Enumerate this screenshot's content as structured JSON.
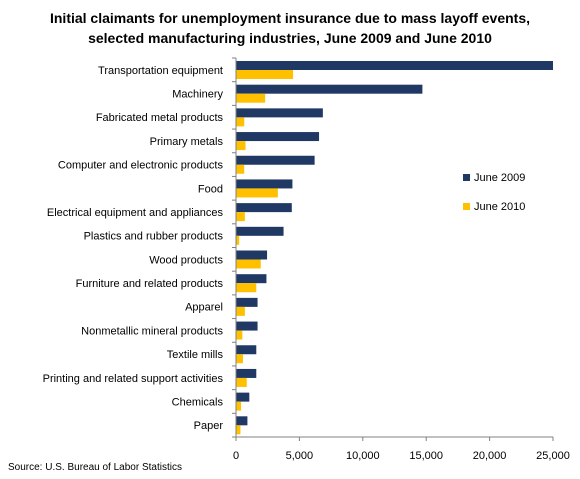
{
  "title_line1": "Initial claimants for unemployment insurance due to mass layoff events,",
  "title_line2": "selected manufacturing industries, June 2009 and June 2010",
  "source": "Source:  U.S. Bureau of Labor Statistics",
  "colors": {
    "june_2009": "#1f3864",
    "june_2010": "#ffc000",
    "axis": "#808080"
  },
  "chart_data": {
    "type": "bar",
    "orientation": "horizontal",
    "title": "Initial claimants for unemployment insurance due to mass layoff events, selected manufacturing industries, June 2009 and June 2010",
    "xlim": [
      0,
      25000
    ],
    "x_ticks": [
      "0",
      "5,000",
      "10,000",
      "15,000",
      "20,000",
      "25,000"
    ],
    "x_tick_values": [
      0,
      5000,
      10000,
      15000,
      20000,
      25000
    ],
    "legend_position": "right",
    "grid": false,
    "categories": [
      "Transportation equipment",
      "Machinery",
      "Fabricated metal  products",
      "Primary metals",
      "Computer and electronic products",
      "Food",
      "Electrical equipment and appliances",
      "Plastics and rubber products",
      "Wood products",
      "Furniture and related products",
      "Apparel",
      "Nonmetallic mineral products",
      "Textile mills",
      "Printing and  related support activities",
      "Chemicals",
      "Paper"
    ],
    "series": [
      {
        "name": "June 2009",
        "values": [
          25000,
          14700,
          6850,
          6550,
          6200,
          4450,
          4400,
          3750,
          2450,
          2400,
          1700,
          1700,
          1600,
          1600,
          1050,
          900
        ]
      },
      {
        "name": "June 2010",
        "values": [
          4500,
          2300,
          650,
          750,
          650,
          3300,
          700,
          250,
          1950,
          1600,
          700,
          500,
          550,
          850,
          400,
          350
        ]
      }
    ]
  }
}
